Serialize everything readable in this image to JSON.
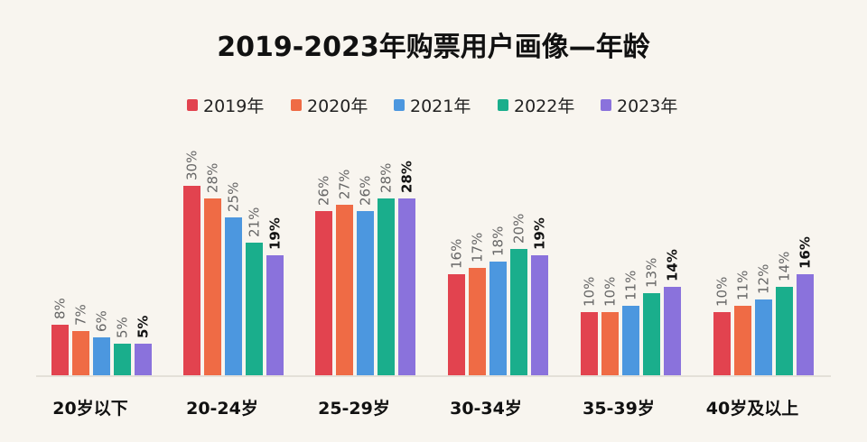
{
  "chart_data": {
    "type": "bar",
    "title": "2019-2023年购票用户画像—年龄",
    "xlabel": "",
    "ylabel": "",
    "ylim": [
      0,
      32
    ],
    "grid": false,
    "legend_position": "top-center",
    "categories": [
      "20岁以下",
      "20-24岁",
      "25-29岁",
      "30-34岁",
      "35-39岁",
      "40岁及以上"
    ],
    "series": [
      {
        "name": "2019年",
        "color": "#e2434f",
        "values": [
          8,
          30,
          26,
          16,
          10,
          10
        ]
      },
      {
        "name": "2020年",
        "color": "#ef6b45",
        "values": [
          7,
          28,
          27,
          17,
          10,
          11
        ]
      },
      {
        "name": "2021年",
        "color": "#4c97df",
        "values": [
          6,
          25,
          26,
          18,
          11,
          12
        ]
      },
      {
        "name": "2022年",
        "color": "#1aae8c",
        "values": [
          5,
          21,
          28,
          20,
          13,
          14
        ]
      },
      {
        "name": "2023年",
        "color": "#8a72dc",
        "values": [
          5,
          19,
          28,
          19,
          14,
          16
        ]
      }
    ],
    "value_labels": [
      [
        "8%",
        "7%",
        "6%",
        "5%",
        "5%"
      ],
      [
        "30%",
        "28%",
        "25%",
        "21%",
        "19%"
      ],
      [
        "26%",
        "27%",
        "26%",
        "28%",
        "28%"
      ],
      [
        "16%",
        "17%",
        "18%",
        "20%",
        "19%"
      ],
      [
        "10%",
        "10%",
        "11%",
        "13%",
        "14%"
      ],
      [
        "10%",
        "11%",
        "12%",
        "14%",
        "16%"
      ]
    ]
  }
}
